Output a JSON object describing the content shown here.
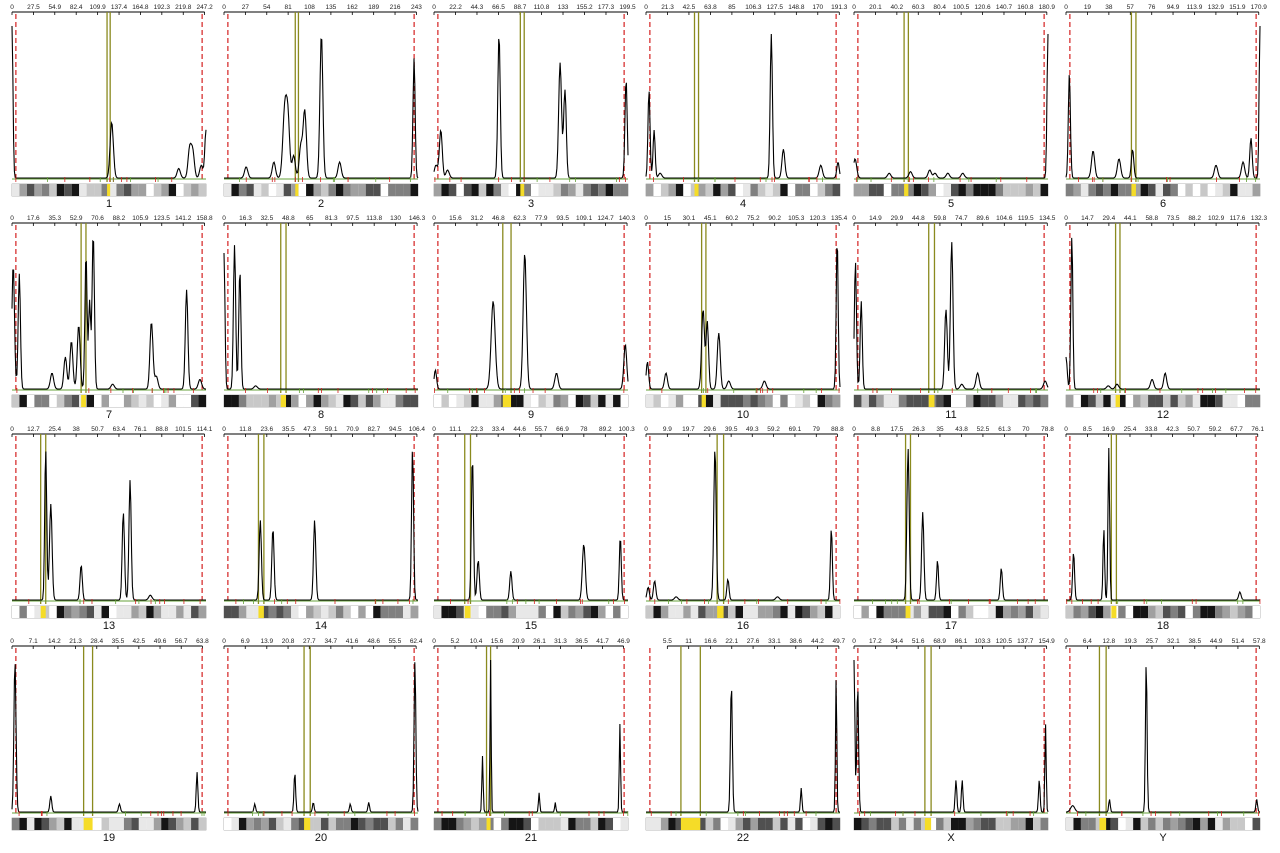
{
  "chart_data": [
    {
      "type": "line",
      "name": "1",
      "ticks": [
        0,
        27.5,
        54.9,
        82.4,
        109.9,
        137.4,
        164.8,
        192.3,
        219.8,
        247.2
      ],
      "xlim": [
        0,
        249
      ],
      "cent": [
        122,
        126
      ],
      "peaks": [
        [
          0,
          0.95,
          1.2
        ],
        [
          128,
          0.35,
          2
        ],
        [
          228,
          0.18,
          2
        ],
        [
          232,
          0.16,
          2
        ],
        [
          214,
          0.06,
          2
        ],
        [
          243,
          0.08,
          2
        ],
        [
          249,
          0.3,
          1.5
        ]
      ]
    },
    {
      "type": "line",
      "name": "2",
      "ticks": [
        0,
        27,
        54,
        81,
        108,
        135,
        162,
        189,
        216,
        243
      ],
      "xlim": [
        0,
        245
      ],
      "cent": [
        90,
        94
      ],
      "peaks": [
        [
          28,
          0.07,
          2
        ],
        [
          63,
          0.1,
          2
        ],
        [
          77,
          0.45,
          2.5
        ],
        [
          81,
          0.3,
          2
        ],
        [
          97,
          0.2,
          2
        ],
        [
          102,
          0.42,
          2
        ],
        [
          123,
          0.9,
          1.8
        ],
        [
          146,
          0.1,
          2
        ],
        [
          240,
          0.75,
          1.3
        ],
        [
          88,
          0.14,
          2
        ]
      ]
    },
    {
      "type": "line",
      "name": "3",
      "ticks": [
        0,
        22.2,
        44.3,
        66.5,
        88.7,
        110.8,
        133,
        155.2,
        177.3,
        199.5
      ],
      "xlim": [
        0,
        200
      ],
      "cent": [
        89,
        93
      ],
      "peaks": [
        [
          2,
          0.08,
          2
        ],
        [
          7,
          0.3,
          1.8
        ],
        [
          14,
          0.05,
          2
        ],
        [
          67,
          0.9,
          1.5
        ],
        [
          130,
          0.72,
          1.8
        ],
        [
          135,
          0.55,
          1.6
        ],
        [
          198,
          0.62,
          1.4
        ]
      ]
    },
    {
      "type": "line",
      "name": "4",
      "ticks": [
        0,
        21.3,
        42.5,
        63.8,
        85,
        106.3,
        127.5,
        148.8,
        170,
        191.3
      ],
      "xlim": [
        0,
        192
      ],
      "cent": [
        48,
        52
      ],
      "peaks": [
        [
          3,
          0.55,
          1.3
        ],
        [
          8,
          0.3,
          1.3
        ],
        [
          14,
          0.03,
          2
        ],
        [
          124,
          0.9,
          1.4
        ],
        [
          136,
          0.18,
          1.8
        ],
        [
          173,
          0.08,
          2
        ],
        [
          190,
          0.1,
          1.5
        ]
      ]
    },
    {
      "type": "line",
      "name": "5",
      "ticks": [
        0,
        20.1,
        40.2,
        60.3,
        80.4,
        100.5,
        120.6,
        140.7,
        160.8,
        180.9
      ],
      "xlim": [
        0,
        182
      ],
      "cent": [
        47,
        51
      ],
      "peaks": [
        [
          1,
          0.12,
          2
        ],
        [
          33,
          0.03,
          2
        ],
        [
          53,
          0.04,
          2
        ],
        [
          71,
          0.05,
          2
        ],
        [
          76,
          0.03,
          2
        ],
        [
          88,
          0.03,
          2
        ],
        [
          102,
          0.03,
          2
        ],
        [
          182,
          0.9,
          1.2
        ]
      ]
    },
    {
      "type": "line",
      "name": "6",
      "ticks": [
        0,
        19,
        38,
        57,
        76,
        94.9,
        113.9,
        132.9,
        151.9,
        170.9
      ],
      "xlim": [
        0,
        172
      ],
      "cent": [
        58,
        62
      ],
      "peaks": [
        [
          3,
          0.65,
          1.3
        ],
        [
          24,
          0.17,
          2
        ],
        [
          47,
          0.12,
          2
        ],
        [
          59,
          0.18,
          1.5
        ],
        [
          133,
          0.08,
          2
        ],
        [
          157,
          0.1,
          2
        ],
        [
          164,
          0.25,
          1.5
        ],
        [
          172,
          0.95,
          1.1
        ]
      ]
    },
    {
      "type": "line",
      "name": "7",
      "ticks": [
        0,
        17.6,
        35.3,
        52.9,
        70.6,
        88.2,
        105.9,
        123.5,
        141.2,
        158.8
      ],
      "xlim": [
        0,
        160
      ],
      "cent": [
        57,
        61
      ],
      "peaks": [
        [
          1,
          0.78,
          1.6
        ],
        [
          6,
          0.72,
          1.4
        ],
        [
          33,
          0.1,
          2
        ],
        [
          44,
          0.2,
          1.8
        ],
        [
          49,
          0.3,
          1.8
        ],
        [
          55,
          0.4,
          1.8
        ],
        [
          61,
          0.85,
          1.3
        ],
        [
          64,
          0.55,
          1.3
        ],
        [
          67,
          0.98,
          1.4
        ],
        [
          83,
          0.03,
          2
        ],
        [
          115,
          0.42,
          1.8
        ],
        [
          119,
          0.08,
          2
        ],
        [
          144,
          0.62,
          1.6
        ],
        [
          155,
          0.06,
          2
        ]
      ]
    },
    {
      "type": "line",
      "name": "8",
      "ticks": [
        0,
        16.3,
        32.5,
        48.8,
        65,
        81.3,
        97.5,
        113.8,
        130,
        146.3
      ],
      "xlim": [
        0,
        147
      ],
      "cent": [
        43,
        47
      ],
      "peaks": [
        [
          0,
          0.85,
          1.2
        ],
        [
          8,
          0.9,
          1.4
        ],
        [
          12,
          0.75,
          1.3
        ],
        [
          24,
          0.02,
          2
        ]
      ]
    },
    {
      "type": "line",
      "name": "9",
      "ticks": [
        0,
        15.6,
        31.2,
        46.8,
        62.3,
        77.9,
        93.5,
        109.1,
        124.7,
        140.3
      ],
      "xlim": [
        0,
        141
      ],
      "cent": [
        50,
        56
      ],
      "peaks": [
        [
          1,
          0.12,
          1.5
        ],
        [
          43,
          0.55,
          2.5
        ],
        [
          66,
          0.85,
          2
        ],
        [
          89,
          0.1,
          2
        ],
        [
          139,
          0.28,
          1.8
        ]
      ]
    },
    {
      "type": "line",
      "name": "10",
      "ticks": [
        0,
        15,
        30.1,
        45.1,
        60.2,
        75.2,
        90.2,
        105.3,
        120.3,
        135.4
      ],
      "xlim": [
        0,
        136
      ],
      "cent": [
        39,
        42
      ],
      "peaks": [
        [
          1,
          0.17,
          1.5
        ],
        [
          14,
          0.1,
          1.8
        ],
        [
          40,
          0.5,
          1.8
        ],
        [
          43,
          0.42,
          1.5
        ],
        [
          51,
          0.35,
          1.8
        ],
        [
          58,
          0.05,
          2
        ],
        [
          83,
          0.05,
          2
        ],
        [
          134,
          0.95,
          1.2
        ]
      ]
    },
    {
      "type": "line",
      "name": "11",
      "ticks": [
        0,
        14.9,
        29.9,
        44.8,
        59.8,
        74.7,
        89.6,
        104.6,
        119.5,
        134.5
      ],
      "xlim": [
        0,
        135
      ],
      "cent": [
        52,
        56
      ],
      "peaks": [
        [
          1,
          0.8,
          1.3
        ],
        [
          5,
          0.55,
          1.3
        ],
        [
          64,
          0.5,
          1.6
        ],
        [
          68,
          0.92,
          1.6
        ],
        [
          75,
          0.03,
          2
        ],
        [
          86,
          0.1,
          2
        ],
        [
          133,
          0.05,
          2
        ]
      ]
    },
    {
      "type": "line",
      "name": "12",
      "ticks": [
        0,
        14.7,
        29.4,
        44.1,
        58.8,
        73.5,
        88.2,
        102.9,
        117.6,
        132.3
      ],
      "xlim": [
        0,
        133
      ],
      "cent": [
        34,
        37
      ],
      "peaks": [
        [
          0,
          0.2,
          1.5
        ],
        [
          4,
          0.96,
          1.2
        ],
        [
          29,
          0.02,
          2
        ],
        [
          35,
          0.03,
          2
        ],
        [
          59,
          0.06,
          2
        ],
        [
          68,
          0.1,
          1.8
        ]
      ]
    },
    {
      "type": "line",
      "name": "13",
      "ticks": [
        0,
        12.7,
        25.4,
        38,
        50.7,
        63.4,
        76.1,
        88.8,
        101.5,
        114.1
      ],
      "xlim": [
        0,
        115
      ],
      "cent": [
        17,
        20
      ],
      "peaks": [
        [
          20,
          0.95,
          1.2
        ],
        [
          23,
          0.6,
          1.6
        ],
        [
          41,
          0.22,
          1.4
        ],
        [
          66,
          0.55,
          1.4
        ],
        [
          70,
          0.75,
          1.4
        ],
        [
          82,
          0.03,
          2
        ]
      ]
    },
    {
      "type": "line",
      "name": "14",
      "ticks": [
        0,
        11.8,
        23.6,
        35.5,
        47.3,
        59.1,
        70.9,
        82.7,
        94.5,
        106.4
      ],
      "xlim": [
        0,
        107
      ],
      "cent": [
        19,
        22
      ],
      "peaks": [
        [
          20,
          0.5,
          1.4
        ],
        [
          27,
          0.45,
          1.4
        ],
        [
          50,
          0.5,
          1.4
        ],
        [
          104,
          0.95,
          1.2
        ]
      ]
    },
    {
      "type": "line",
      "name": "15",
      "ticks": [
        0,
        11.1,
        22.3,
        33.4,
        44.6,
        55.7,
        66.9,
        78,
        89.2,
        100.3
      ],
      "xlim": [
        0,
        101
      ],
      "cent": [
        16,
        19
      ],
      "peaks": [
        [
          20,
          0.9,
          1.3
        ],
        [
          23,
          0.25,
          1.4
        ],
        [
          40,
          0.18,
          1.4
        ],
        [
          78,
          0.35,
          1.8
        ],
        [
          97,
          0.4,
          1.2
        ]
      ]
    },
    {
      "type": "line",
      "name": "16",
      "ticks": [
        0,
        9.9,
        19.7,
        29.6,
        39.5,
        49.3,
        59.2,
        69.1,
        79,
        88.8
      ],
      "xlim": [
        0,
        90
      ],
      "cent": [
        33,
        36
      ],
      "peaks": [
        [
          1,
          0.08,
          1.5
        ],
        [
          4,
          0.12,
          1.5
        ],
        [
          14,
          0.02,
          2
        ],
        [
          32,
          0.95,
          1.5
        ],
        [
          38,
          0.13,
          1.3
        ],
        [
          61,
          0.02,
          2
        ],
        [
          86,
          0.45,
          1.2
        ]
      ]
    },
    {
      "type": "line",
      "name": "17",
      "ticks": [
        0,
        8.8,
        17.5,
        26.3,
        35,
        43.8,
        52.5,
        61.3,
        70,
        78.8
      ],
      "xlim": [
        0,
        79
      ],
      "cent": [
        21,
        23
      ],
      "peaks": [
        [
          22,
          0.95,
          1.4
        ],
        [
          28,
          0.55,
          1.4
        ],
        [
          34,
          0.25,
          1.2
        ],
        [
          60,
          0.2,
          1.3
        ]
      ]
    },
    {
      "type": "line",
      "name": "18",
      "ticks": [
        0,
        8.5,
        16.9,
        25.4,
        33.8,
        42.3,
        50.7,
        59.2,
        67.7,
        76.1
      ],
      "xlim": [
        0,
        77
      ],
      "cent": [
        18,
        20
      ],
      "peaks": [
        [
          3,
          0.3,
          1.2
        ],
        [
          15,
          0.45,
          1
        ],
        [
          17,
          0.95,
          1
        ],
        [
          69,
          0.05,
          1.5
        ]
      ]
    },
    {
      "type": "line",
      "name": "19",
      "ticks": [
        0,
        7.1,
        14.2,
        21.3,
        28.4,
        35.5,
        42.5,
        49.6,
        56.7,
        63.8
      ],
      "xlim": [
        0,
        65
      ],
      "cent": [
        24,
        27
      ],
      "peaks": [
        [
          1,
          0.95,
          1.3
        ],
        [
          13,
          0.1,
          1.2
        ],
        [
          36,
          0.05,
          1.2
        ],
        [
          62,
          0.25,
          1
        ]
      ]
    },
    {
      "type": "line",
      "name": "20",
      "ticks": [
        0,
        6.9,
        13.9,
        20.8,
        27.7,
        34.7,
        41.6,
        48.6,
        55.5,
        62.4
      ],
      "xlim": [
        0,
        63
      ],
      "cent": [
        26,
        28
      ],
      "peaks": [
        [
          10,
          0.05,
          1
        ],
        [
          23,
          0.25,
          1
        ],
        [
          29,
          0.06,
          1
        ],
        [
          41,
          0.05,
          1
        ],
        [
          47,
          0.06,
          1
        ],
        [
          62,
          0.95,
          1.1
        ]
      ]
    },
    {
      "type": "line",
      "name": "21",
      "ticks": [
        0,
        5.2,
        10.4,
        15.6,
        20.9,
        26.1,
        31.3,
        36.5,
        41.7,
        46.9
      ],
      "xlim": [
        0,
        48
      ],
      "cent": [
        13,
        14
      ],
      "peaks": [
        [
          12,
          0.35,
          0.8
        ],
        [
          14,
          0.95,
          0.7
        ],
        [
          26,
          0.12,
          0.8
        ],
        [
          30,
          0.06,
          0.7
        ],
        [
          46,
          0.55,
          0.8
        ]
      ]
    },
    {
      "type": "line",
      "name": "22",
      "ticks": [
        5.5,
        11,
        16.6,
        22.1,
        27.6,
        33.1,
        38.6,
        44.2,
        49.7
      ],
      "xlim": [
        0,
        50
      ],
      "cent": [
        9,
        14
      ],
      "peaks": [
        [
          22,
          0.8,
          1.2
        ],
        [
          40,
          0.15,
          0.9
        ],
        [
          49,
          0.85,
          0.8
        ]
      ]
    },
    {
      "type": "line",
      "name": "X",
      "ticks": [
        0,
        17.2,
        34.4,
        51.6,
        68.9,
        86.1,
        103.3,
        120.5,
        137.7,
        154.9
      ],
      "xlim": [
        0,
        156
      ],
      "cent": [
        57,
        62
      ],
      "peaks": [
        [
          0,
          0.95,
          1.1
        ],
        [
          3,
          0.8,
          1.1
        ],
        [
          82,
          0.2,
          1
        ],
        [
          87,
          0.2,
          1
        ],
        [
          149,
          0.2,
          1
        ],
        [
          154,
          0.55,
          0.8
        ]
      ]
    },
    {
      "type": "line",
      "name": "Y",
      "ticks": [
        0,
        6.4,
        12.8,
        19.3,
        25.7,
        32.1,
        38.5,
        44.9,
        51.4,
        57.8
      ],
      "xlim": [
        0,
        58
      ],
      "cent": [
        10,
        12
      ],
      "peaks": [
        [
          2,
          0.04,
          2.5
        ],
        [
          13,
          0.08,
          0.9
        ],
        [
          24,
          0.95,
          1
        ],
        [
          57,
          0.08,
          1
        ]
      ]
    }
  ]
}
